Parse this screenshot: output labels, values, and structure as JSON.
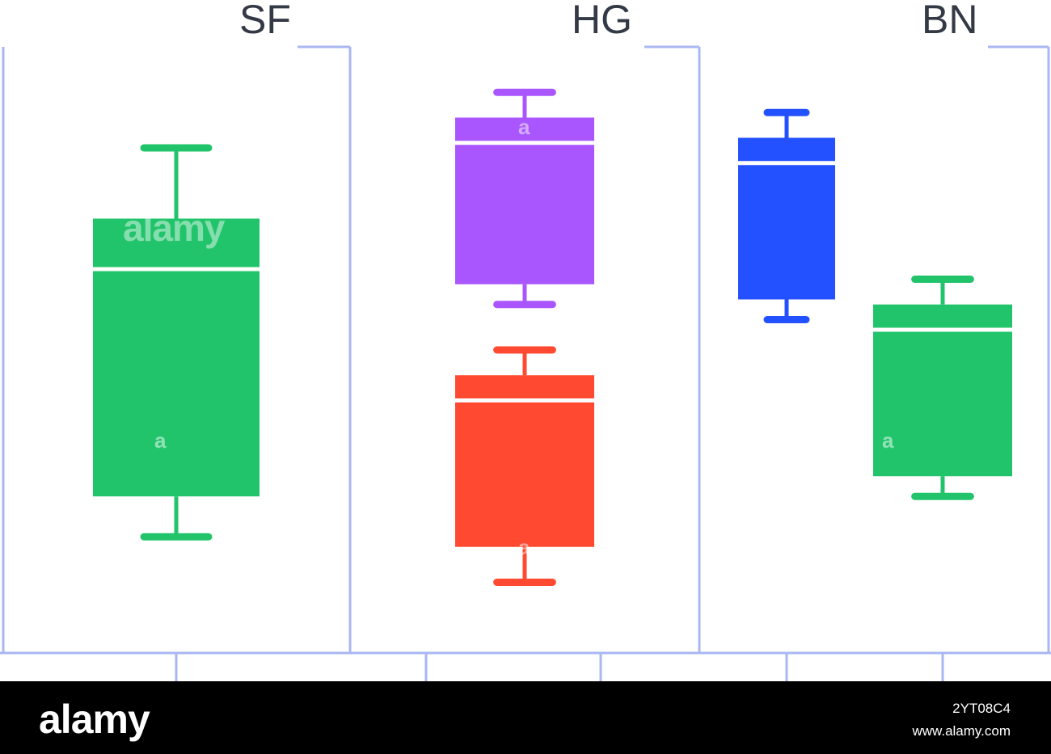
{
  "chart_data": {
    "type": "boxplot",
    "panels": [
      {
        "label": "SF",
        "boxes": [
          {
            "color": "#22c46b",
            "whisker_high": 100,
            "q3": 86,
            "median": 76,
            "q1": 31,
            "whisker_low": 23
          }
        ]
      },
      {
        "label": "HG",
        "boxes": [
          {
            "color": "#a956ff",
            "whisker_high": 111,
            "q3": 106,
            "median": 101,
            "q1": 73,
            "whisker_low": 69
          },
          {
            "color": "#ff4a31",
            "whisker_high": 60,
            "q3": 55,
            "median": 50,
            "q1": 21,
            "whisker_low": 14
          }
        ]
      },
      {
        "label": "BN",
        "boxes": [
          {
            "color": "#2451ff",
            "whisker_high": 107,
            "q3": 102,
            "median": 97,
            "q1": 70,
            "whisker_low": 66
          },
          {
            "color": "#22c46b",
            "whisker_high": 74,
            "q3": 69,
            "median": 64,
            "q1": 35,
            "whisker_low": 31
          }
        ]
      }
    ],
    "ylim": [
      0,
      120
    ],
    "grid": false,
    "frame_color": "#a9b7f2"
  },
  "watermark": {
    "brand": "alamy",
    "glyph": "a"
  },
  "footer": {
    "logo": "alamy",
    "image_id": "2YT08C4",
    "url": "www.alamy.com"
  }
}
